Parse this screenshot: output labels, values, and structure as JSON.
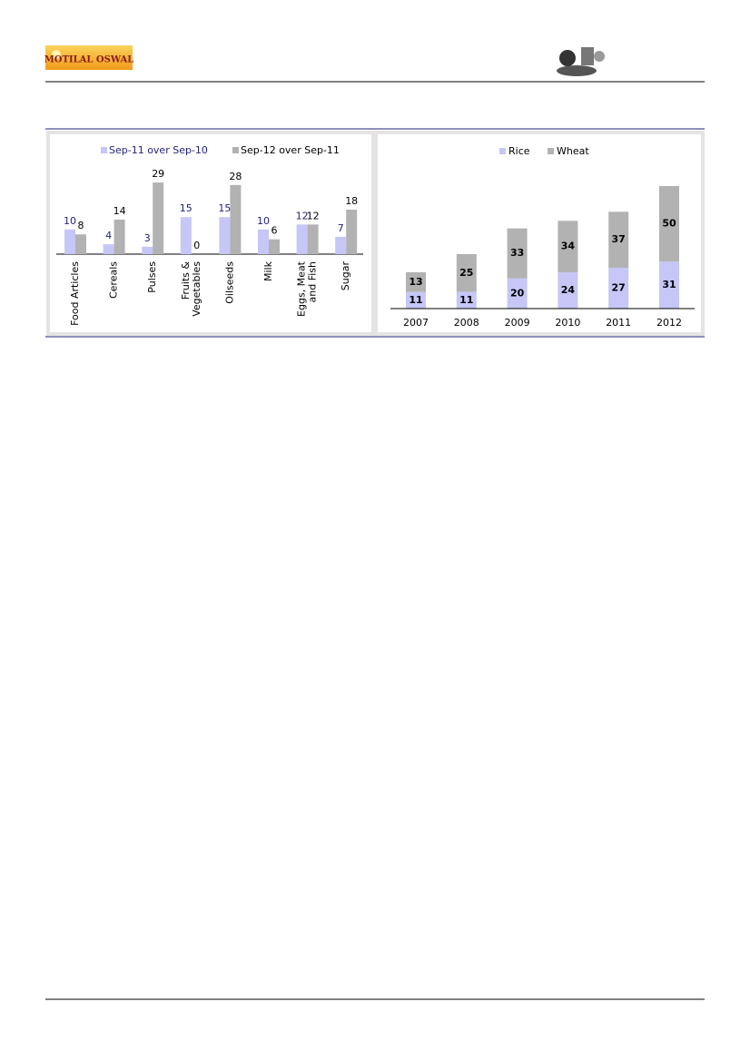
{
  "header": {
    "logo": "MOTILAL OSWAL"
  },
  "chart_data": [
    {
      "type": "grouped-bar",
      "categories": [
        "Food Articles",
        "Cereals",
        "Pulses",
        "Fruits & Vegetables",
        "Oilseeds",
        "Milk",
        "Eggs, Meat and Fish",
        "Sugar"
      ],
      "series": [
        {
          "name": "Sep-11 over Sep-10",
          "color": "#c6c6f7",
          "label_color": "#1f1f7a",
          "values": [
            10,
            4,
            3,
            15,
            15,
            10,
            12,
            7
          ]
        },
        {
          "name": "Sep-12 over Sep-11",
          "color": "#b2b2b2",
          "label_color": "#000000",
          "values": [
            8,
            14,
            29,
            0,
            28,
            6,
            12,
            18
          ]
        }
      ]
    },
    {
      "type": "stacked-bar",
      "categories": [
        "2007",
        "2008",
        "2009",
        "2010",
        "2011",
        "2012"
      ],
      "series": [
        {
          "name": "Rice",
          "color": "#c6c6f7",
          "values": [
            11,
            11,
            20,
            24,
            27,
            31
          ]
        },
        {
          "name": "Wheat",
          "color": "#b2b2b2",
          "values": [
            13,
            25,
            33,
            34,
            37,
            50
          ]
        }
      ]
    }
  ]
}
